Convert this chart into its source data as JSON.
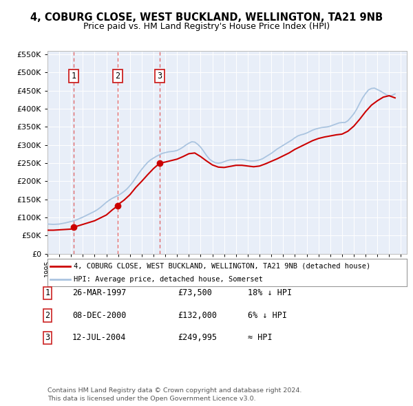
{
  "title": "4, COBURG CLOSE, WEST BUCKLAND, WELLINGTON, TA21 9NB",
  "subtitle": "Price paid vs. HM Land Registry's House Price Index (HPI)",
  "legend_line1": "4, COBURG CLOSE, WEST BUCKLAND, WELLINGTON, TA21 9NB (detached house)",
  "legend_line2": "HPI: Average price, detached house, Somerset",
  "footer1": "Contains HM Land Registry data © Crown copyright and database right 2024.",
  "footer2": "This data is licensed under the Open Government Licence v3.0.",
  "transactions": [
    {
      "num": 1,
      "date": "26-MAR-1997",
      "price": 73500,
      "year": 1997.23,
      "hpi_rel": "18% ↓ HPI"
    },
    {
      "num": 2,
      "date": "08-DEC-2000",
      "price": 132000,
      "year": 2000.94,
      "hpi_rel": "6% ↓ HPI"
    },
    {
      "num": 3,
      "date": "12-JUL-2004",
      "price": 249995,
      "year": 2004.53,
      "hpi_rel": "≈ HPI"
    }
  ],
  "hpi_color": "#aac4e0",
  "price_color": "#cc0000",
  "vline_color": "#dd4444",
  "plot_bg": "#e8eef8",
  "grid_color": "#ffffff",
  "ylim": [
    0,
    560000
  ],
  "xlim_start": 1995.0,
  "xlim_end": 2025.5,
  "hpi_data_x": [
    1995.0,
    1995.25,
    1995.5,
    1995.75,
    1996.0,
    1996.25,
    1996.5,
    1996.75,
    1997.0,
    1997.25,
    1997.5,
    1997.75,
    1998.0,
    1998.25,
    1998.5,
    1998.75,
    1999.0,
    1999.25,
    1999.5,
    1999.75,
    2000.0,
    2000.25,
    2000.5,
    2000.75,
    2001.0,
    2001.25,
    2001.5,
    2001.75,
    2002.0,
    2002.25,
    2002.5,
    2002.75,
    2003.0,
    2003.25,
    2003.5,
    2003.75,
    2004.0,
    2004.25,
    2004.5,
    2004.75,
    2005.0,
    2005.25,
    2005.5,
    2005.75,
    2006.0,
    2006.25,
    2006.5,
    2006.75,
    2007.0,
    2007.25,
    2007.5,
    2007.75,
    2008.0,
    2008.25,
    2008.5,
    2008.75,
    2009.0,
    2009.25,
    2009.5,
    2009.75,
    2010.0,
    2010.25,
    2010.5,
    2010.75,
    2011.0,
    2011.25,
    2011.5,
    2011.75,
    2012.0,
    2012.25,
    2012.5,
    2012.75,
    2013.0,
    2013.25,
    2013.5,
    2013.75,
    2014.0,
    2014.25,
    2014.5,
    2014.75,
    2015.0,
    2015.25,
    2015.5,
    2015.75,
    2016.0,
    2016.25,
    2016.5,
    2016.75,
    2017.0,
    2017.25,
    2017.5,
    2017.75,
    2018.0,
    2018.25,
    2018.5,
    2018.75,
    2019.0,
    2019.25,
    2019.5,
    2019.75,
    2020.0,
    2020.25,
    2020.5,
    2020.75,
    2021.0,
    2021.25,
    2021.5,
    2021.75,
    2022.0,
    2022.25,
    2022.5,
    2022.75,
    2023.0,
    2023.25,
    2023.5,
    2023.75,
    2024.0,
    2024.25,
    2024.5
  ],
  "hpi_data_y": [
    82000,
    81500,
    81000,
    81500,
    82000,
    83500,
    85000,
    87000,
    89000,
    91000,
    94000,
    97500,
    101000,
    105000,
    109000,
    113000,
    117000,
    122000,
    128000,
    135000,
    142000,
    148000,
    153000,
    157000,
    161000,
    166000,
    172000,
    179000,
    188000,
    198000,
    210000,
    222000,
    233000,
    243000,
    252000,
    259000,
    264000,
    269000,
    273000,
    277000,
    279000,
    281000,
    282000,
    283000,
    285000,
    289000,
    294000,
    300000,
    305000,
    309000,
    308000,
    302000,
    294000,
    283000,
    271000,
    261000,
    255000,
    251000,
    250000,
    251000,
    254000,
    257000,
    259000,
    259000,
    259000,
    260000,
    260000,
    259000,
    257000,
    256000,
    256000,
    257000,
    259000,
    262000,
    267000,
    272000,
    277000,
    283000,
    289000,
    294000,
    299000,
    304000,
    309000,
    314000,
    320000,
    325000,
    328000,
    330000,
    333000,
    337000,
    341000,
    344000,
    346000,
    348000,
    349000,
    350000,
    352000,
    355000,
    358000,
    361000,
    362000,
    362000,
    367000,
    376000,
    386000,
    399000,
    415000,
    430000,
    442000,
    452000,
    456000,
    457000,
    453000,
    449000,
    444000,
    439000,
    435000,
    437000,
    441000
  ],
  "price_data_x": [
    1995.0,
    1995.5,
    1996.0,
    1996.5,
    1997.0,
    1997.23,
    1997.5,
    1998.0,
    1998.5,
    1999.0,
    1999.5,
    2000.0,
    2000.5,
    2000.94,
    2001.0,
    2001.5,
    2002.0,
    2002.5,
    2003.0,
    2003.5,
    2004.0,
    2004.53,
    2005.0,
    2005.5,
    2006.0,
    2006.5,
    2007.0,
    2007.5,
    2008.0,
    2008.5,
    2009.0,
    2009.5,
    2010.0,
    2010.5,
    2011.0,
    2011.5,
    2012.0,
    2012.5,
    2013.0,
    2013.5,
    2014.0,
    2014.5,
    2015.0,
    2015.5,
    2016.0,
    2016.5,
    2017.0,
    2017.5,
    2018.0,
    2018.5,
    2019.0,
    2019.5,
    2020.0,
    2020.5,
    2021.0,
    2021.5,
    2022.0,
    2022.5,
    2023.0,
    2023.5,
    2024.0,
    2024.5
  ],
  "price_data_y": [
    65000,
    65000,
    66000,
    67000,
    68000,
    73500,
    76000,
    81000,
    86000,
    91000,
    99000,
    107000,
    121000,
    132000,
    136000,
    148000,
    163000,
    183000,
    200000,
    218000,
    235000,
    249995,
    253000,
    257000,
    261000,
    268000,
    276000,
    278000,
    268000,
    256000,
    245000,
    239000,
    238000,
    241000,
    244000,
    244000,
    242000,
    240000,
    242000,
    248000,
    255000,
    262000,
    270000,
    278000,
    288000,
    296000,
    304000,
    312000,
    318000,
    322000,
    325000,
    328000,
    330000,
    338000,
    352000,
    371000,
    392000,
    410000,
    422000,
    432000,
    436000,
    430000
  ]
}
